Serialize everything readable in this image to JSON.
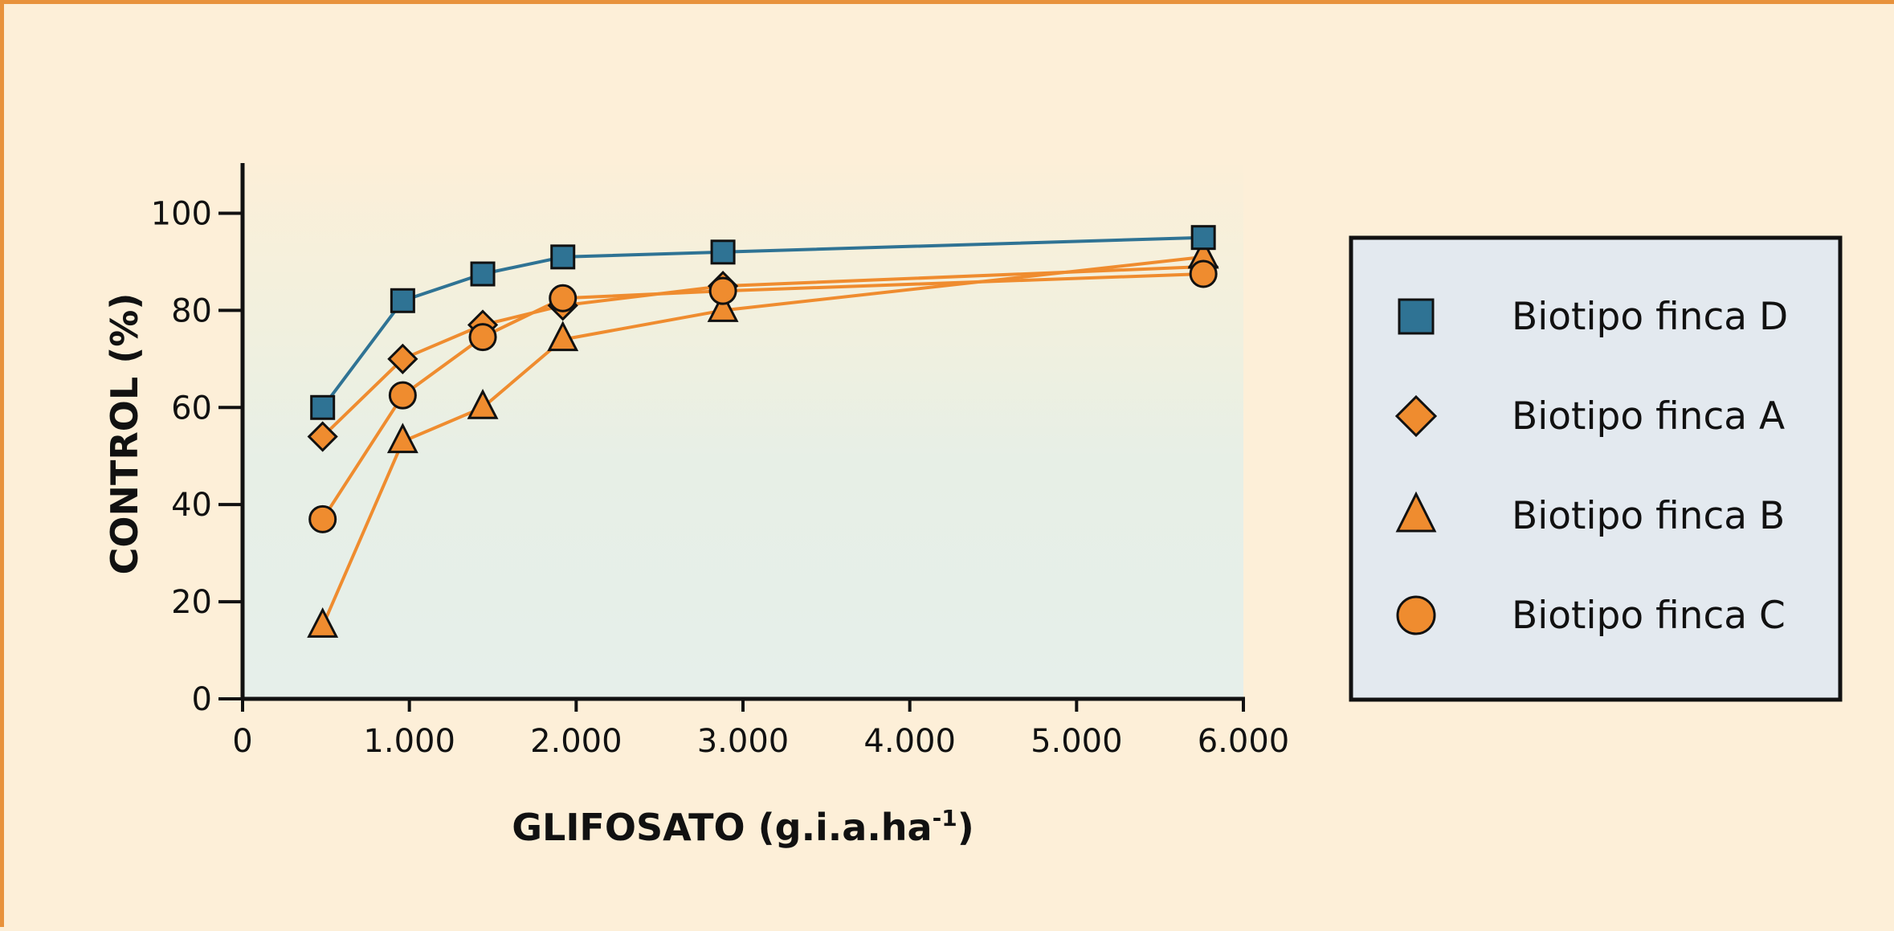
{
  "chart_data": {
    "type": "line",
    "title": "",
    "xlabel": "GLIFOSATO (g.i.a.ha",
    "xlabel_sup": "-1",
    "xlabel_close": ")",
    "ylabel": "CONTROL (%)",
    "xlim": [
      0,
      6000
    ],
    "ylim": [
      0,
      110
    ],
    "x_ticks": [
      0,
      1000,
      2000,
      3000,
      4000,
      5000,
      6000
    ],
    "x_tick_labels": [
      "0",
      "1.000",
      "2.000",
      "3.000",
      "4.000",
      "5.000",
      "6.000"
    ],
    "y_ticks": [
      0,
      20,
      40,
      60,
      80,
      100
    ],
    "y_tick_labels": [
      "0",
      "20",
      "40",
      "60",
      "80",
      "100"
    ],
    "grid": false,
    "legend_position": "right",
    "x": [
      480,
      960,
      1440,
      1920,
      2880,
      5760
    ],
    "series": [
      {
        "name": "Biotipo finca D",
        "marker": "square",
        "color": "#2f7394",
        "values": [
          60,
          82,
          87.5,
          91,
          92,
          95
        ]
      },
      {
        "name": "Biotipo finca A",
        "marker": "diamond",
        "color": "#ef8c2f",
        "values": [
          54,
          70,
          77,
          81,
          85,
          89
        ]
      },
      {
        "name": "Biotipo finca B",
        "marker": "triangle",
        "color": "#ef8c2f",
        "values": [
          15,
          53,
          60,
          74,
          80,
          91
        ]
      },
      {
        "name": "Biotipo finca C",
        "marker": "circle",
        "color": "#ef8c2f",
        "values": [
          37,
          62.5,
          74.5,
          82.5,
          84,
          87.5
        ]
      }
    ]
  }
}
